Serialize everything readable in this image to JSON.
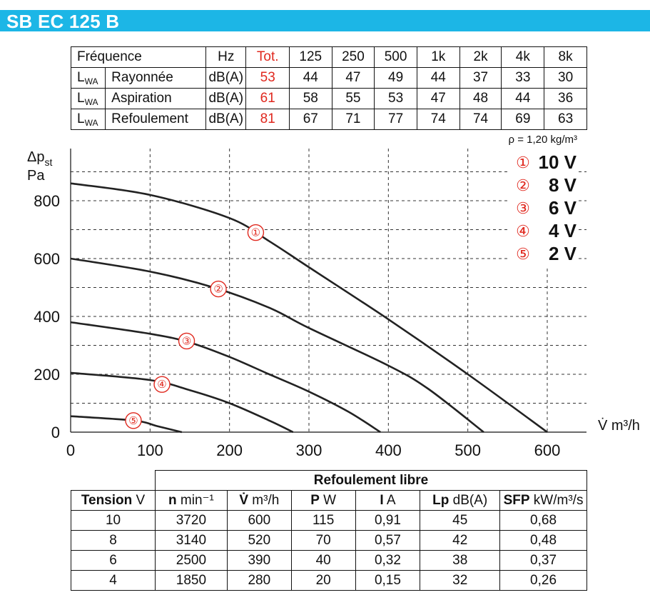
{
  "title": "SB EC 125 B",
  "freq_table": {
    "header": [
      "Fréquence",
      "Hz",
      "Tot.",
      "125",
      "250",
      "500",
      "1k",
      "2k",
      "4k",
      "8k"
    ],
    "rows": [
      {
        "prefix": "L",
        "sub": "WA",
        "label": "Rayonnée",
        "unit": "dB(A)",
        "total": "53",
        "values": [
          "44",
          "47",
          "49",
          "44",
          "37",
          "33",
          "30"
        ]
      },
      {
        "prefix": "L",
        "sub": "WA",
        "label": "Aspiration",
        "unit": "dB(A)",
        "total": "61",
        "values": [
          "58",
          "55",
          "53",
          "47",
          "48",
          "44",
          "36"
        ]
      },
      {
        "prefix": "L",
        "sub": "WA",
        "label": "Refoulement",
        "unit": "dB(A)",
        "total": "81",
        "values": [
          "67",
          "71",
          "77",
          "74",
          "74",
          "69",
          "63"
        ]
      }
    ]
  },
  "rho_label": "ρ = 1,20 kg/m³",
  "chart_data": {
    "type": "line",
    "ylabel_main": "Δp",
    "ylabel_sub": "st",
    "ylabel_unit": "Pa",
    "xlabel": "V̇ m³/h",
    "xlim": [
      0,
      600
    ],
    "ylim": [
      0,
      900
    ],
    "x_ticks": [
      "0",
      "100",
      "200",
      "300",
      "400",
      "500",
      "600"
    ],
    "y_ticks": [
      "0",
      "200",
      "400",
      "600",
      "800"
    ],
    "grid": true,
    "legend_position": "top-right",
    "series": [
      {
        "marker": "①",
        "name": "10 V",
        "points": [
          [
            0,
            860
          ],
          [
            100,
            820
          ],
          [
            200,
            740
          ],
          [
            250,
            660
          ],
          [
            300,
            570
          ],
          [
            400,
            390
          ],
          [
            500,
            200
          ],
          [
            600,
            0
          ]
        ],
        "label_at": [
          233,
          690
        ]
      },
      {
        "marker": "②",
        "name": "8 V",
        "points": [
          [
            0,
            600
          ],
          [
            100,
            555
          ],
          [
            180,
            500
          ],
          [
            250,
            430
          ],
          [
            300,
            360
          ],
          [
            400,
            230
          ],
          [
            450,
            150
          ],
          [
            520,
            0
          ]
        ],
        "label_at": [
          186,
          495
        ]
      },
      {
        "marker": "③",
        "name": "6 V",
        "points": [
          [
            0,
            380
          ],
          [
            100,
            340
          ],
          [
            150,
            310
          ],
          [
            200,
            260
          ],
          [
            250,
            200
          ],
          [
            300,
            140
          ],
          [
            350,
            70
          ],
          [
            390,
            0
          ]
        ],
        "label_at": [
          146,
          315
        ]
      },
      {
        "marker": "④",
        "name": "4 V",
        "points": [
          [
            0,
            205
          ],
          [
            100,
            180
          ],
          [
            150,
            145
          ],
          [
            200,
            100
          ],
          [
            250,
            40
          ],
          [
            280,
            0
          ]
        ],
        "label_at": [
          115,
          165
        ]
      },
      {
        "marker": "⑤",
        "name": "2 V",
        "points": [
          [
            0,
            55
          ],
          [
            80,
            40
          ],
          [
            110,
            20
          ],
          [
            140,
            0
          ]
        ],
        "label_at": [
          79,
          40
        ]
      }
    ]
  },
  "perf_table": {
    "group_header": "Refoulement libre",
    "columns": [
      {
        "bold": "Tension",
        "unit": " V"
      },
      {
        "bold": "n",
        "unit": " min⁻¹"
      },
      {
        "bold": "V̇",
        "unit": " m³/h"
      },
      {
        "bold": "P",
        "unit": " W"
      },
      {
        "bold": "I",
        "unit": " A"
      },
      {
        "bold": "Lp",
        "unit": " dB(A)"
      },
      {
        "bold": "SFP",
        "unit": " kW/m³/s"
      }
    ],
    "rows": [
      [
        "10",
        "3720",
        "600",
        "115",
        "0,91",
        "45",
        "0,68"
      ],
      [
        "8",
        "3140",
        "520",
        "70",
        "0,57",
        "42",
        "0,48"
      ],
      [
        "6",
        "2500",
        "390",
        "40",
        "0,32",
        "38",
        "0,37"
      ],
      [
        "4",
        "1850",
        "280",
        "20",
        "0,15",
        "32",
        "0,26"
      ]
    ]
  }
}
